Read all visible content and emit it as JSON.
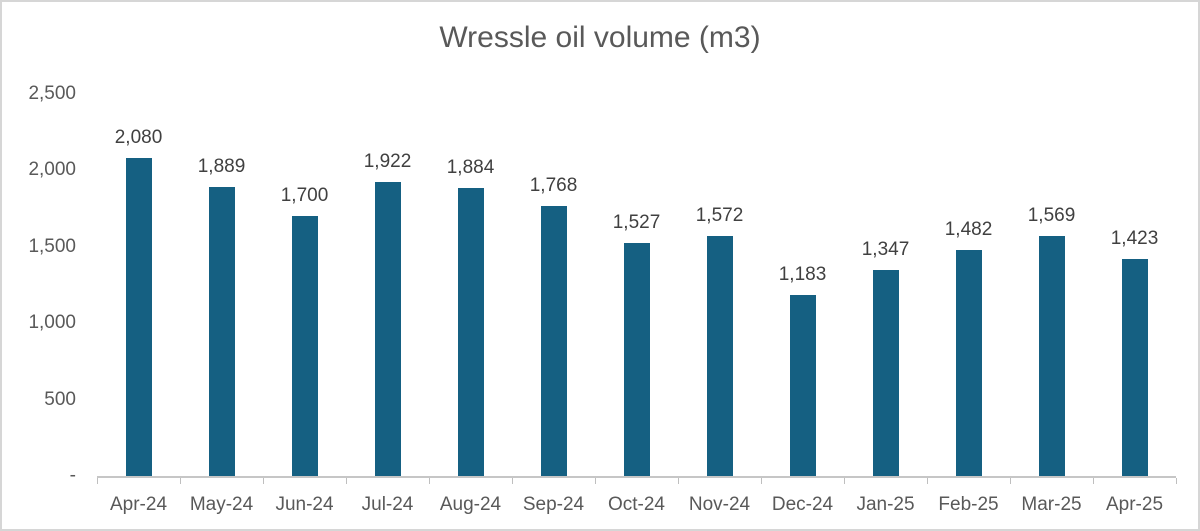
{
  "window": {
    "background": "#ffffff",
    "border_color": "#d6d6d6"
  },
  "chart_data": {
    "type": "bar",
    "title": "Wressle oil volume (m3)",
    "categories": [
      "Apr-24",
      "May-24",
      "Jun-24",
      "Jul-24",
      "Aug-24",
      "Sep-24",
      "Oct-24",
      "Nov-24",
      "Dec-24",
      "Jan-25",
      "Feb-25",
      "Mar-25",
      "Apr-25"
    ],
    "values": [
      2080,
      1889,
      1700,
      1922,
      1884,
      1768,
      1527,
      1572,
      1183,
      1347,
      1482,
      1569,
      1423
    ],
    "value_labels": [
      "2,080",
      "1,889",
      "1,700",
      "1,922",
      "1,884",
      "1,768",
      "1,527",
      "1,572",
      "1,183",
      "1,347",
      "1,482",
      "1,569",
      "1,423"
    ],
    "xlabel": "",
    "ylabel": "",
    "ylim": [
      0,
      2500
    ],
    "gridlines": false,
    "legend": false,
    "y_axis_ticks": [
      {
        "value": 2500,
        "label": "2,500"
      },
      {
        "value": 2000,
        "label": "2,000"
      },
      {
        "value": 1500,
        "label": "1,500"
      },
      {
        "value": 1000,
        "label": "1,000"
      },
      {
        "value": 500,
        "label": "500"
      },
      {
        "value": 0,
        "label": "-"
      }
    ],
    "colors": {
      "bar": "#156082",
      "title": "#595959",
      "axis_labels": "#595959",
      "data_labels": "#404040",
      "axis_line": "#c6c6c6",
      "tick_mark": "#bfbfbf"
    }
  }
}
